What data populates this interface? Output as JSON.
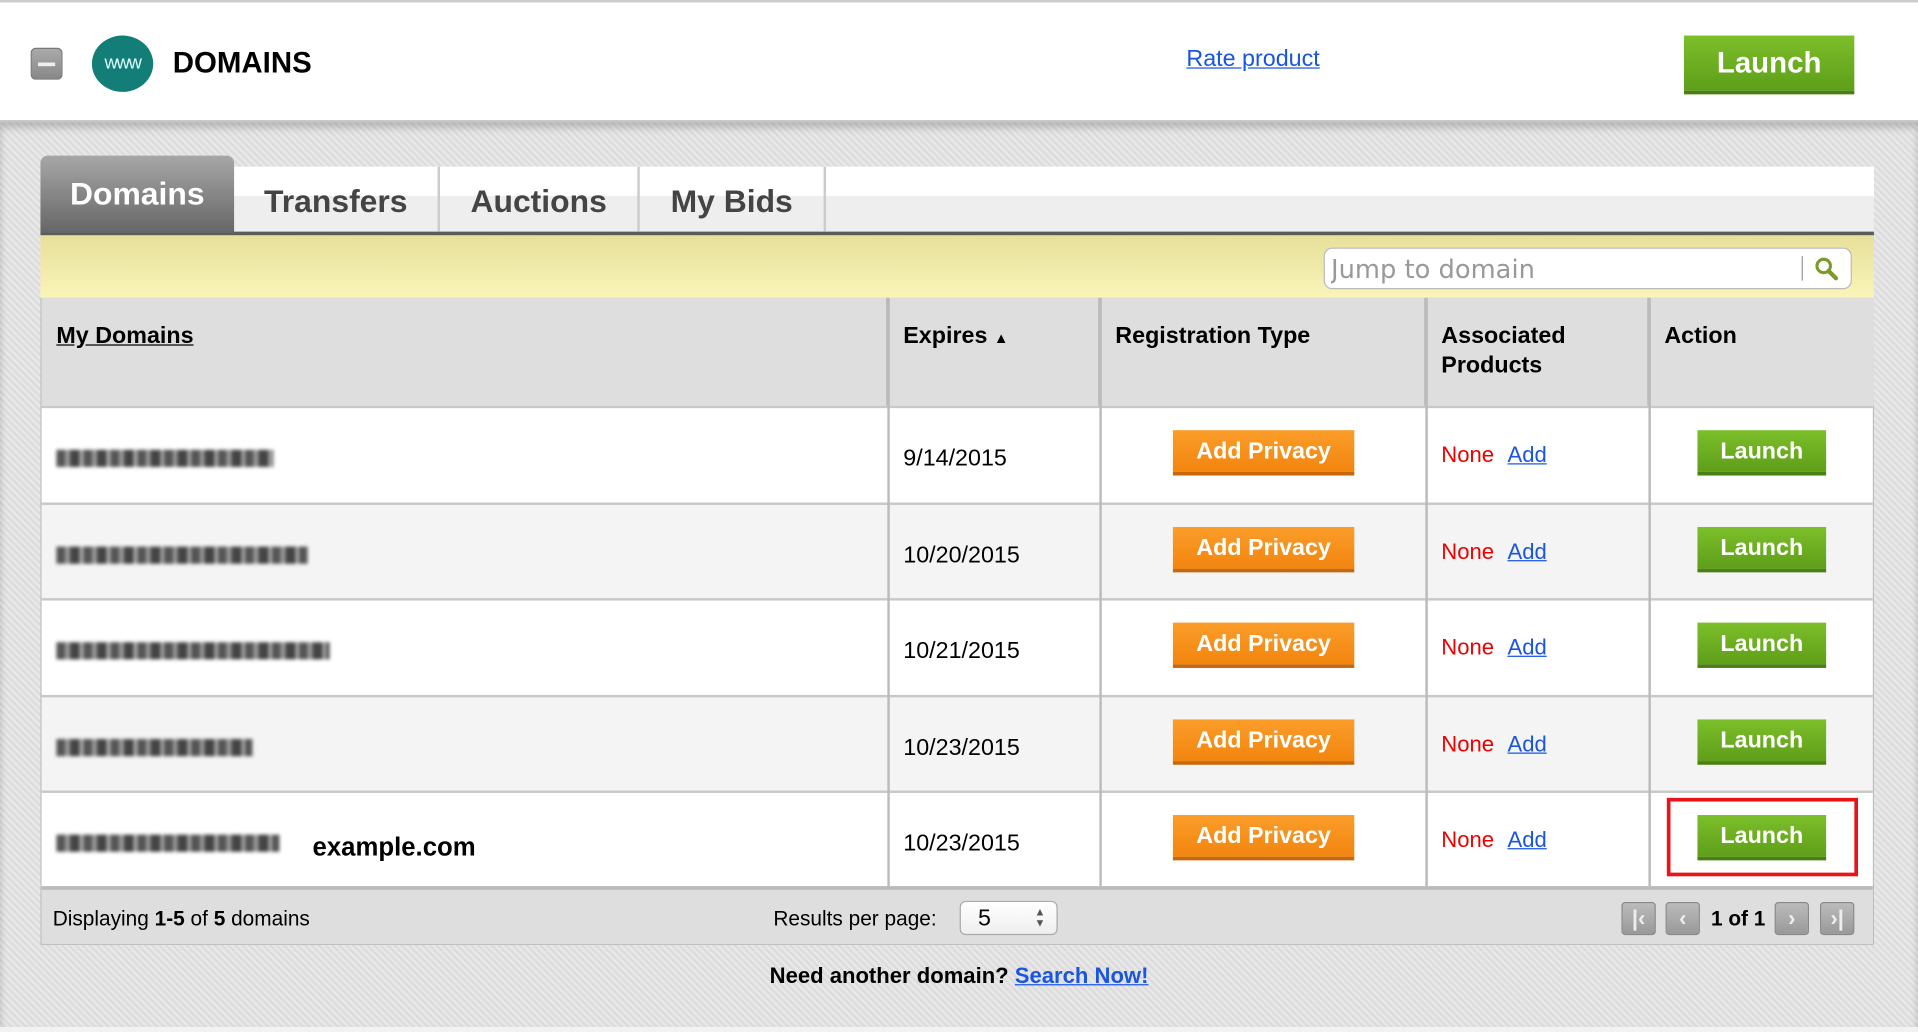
{
  "header": {
    "title": "DOMAINS",
    "logo_text": "www",
    "rate_link": "Rate product",
    "launch_label": "Launch"
  },
  "tabs": [
    {
      "label": "Domains",
      "active": true
    },
    {
      "label": "Transfers"
    },
    {
      "label": "Auctions"
    },
    {
      "label": "My Bids"
    }
  ],
  "search": {
    "placeholder": "Jump to domain",
    "value": ""
  },
  "table": {
    "columns": [
      "My Domains",
      "Expires",
      "Registration Type",
      "Associated Products",
      "Action"
    ],
    "sort_indicator": "▲",
    "rows": [
      {
        "domain_blurred": true,
        "expires": "9/14/2015",
        "privacy": "Add Privacy",
        "products": "None",
        "add": "Add",
        "action": "Launch"
      },
      {
        "domain_blurred": true,
        "expires": "10/20/2015",
        "privacy": "Add Privacy",
        "products": "None",
        "add": "Add",
        "action": "Launch"
      },
      {
        "domain_blurred": true,
        "expires": "10/21/2015",
        "privacy": "Add Privacy",
        "products": "None",
        "add": "Add",
        "action": "Launch"
      },
      {
        "domain_blurred": true,
        "expires": "10/23/2015",
        "privacy": "Add Privacy",
        "products": "None",
        "add": "Add",
        "action": "Launch"
      },
      {
        "domain_blurred": true,
        "label": "example.com",
        "expires": "10/23/2015",
        "privacy": "Add Privacy",
        "products": "None",
        "add": "Add",
        "action": "Launch",
        "highlighted": true
      }
    ]
  },
  "footer": {
    "displaying_prefix": "Displaying ",
    "range": "1-5",
    "of": " of ",
    "total": "5",
    "suffix": " domains",
    "results_label": "Results per page:",
    "results_value": "5",
    "page_info": "1 of 1"
  },
  "bottom": {
    "question": "Need another domain? ",
    "link": "Search Now!"
  },
  "colors": {
    "launch_green": "#6aaa1e",
    "privacy_orange": "#f7931e",
    "none_red": "#e00000",
    "link_blue": "#1a55e0",
    "highlight_red": "#e8141a",
    "logo_teal": "#137d77"
  }
}
